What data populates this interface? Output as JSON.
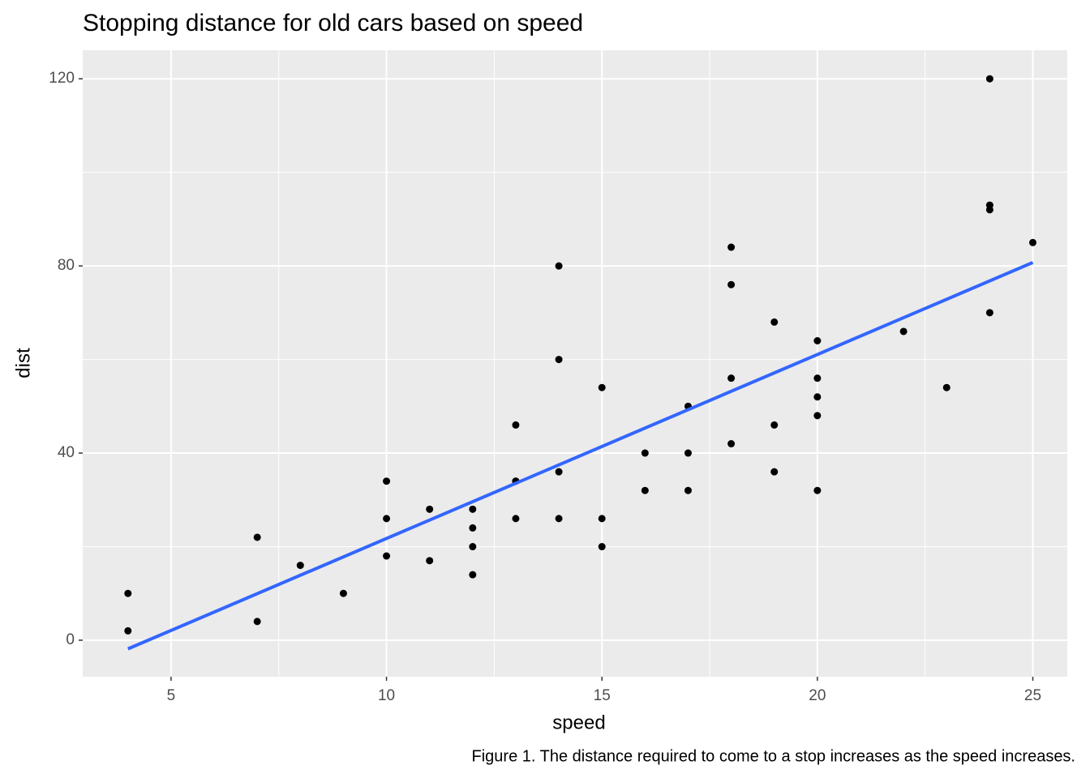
{
  "chart_data": {
    "type": "scatter",
    "title": "Stopping distance for old cars based on speed",
    "x_label": "speed",
    "y_label": "dist",
    "caption": "Figure 1. The distance required to come to a stop increases as the speed increases.",
    "series": [
      {
        "name": "cars",
        "color": "#000000",
        "x": [
          4,
          4,
          7,
          7,
          8,
          9,
          10,
          10,
          10,
          11,
          11,
          12,
          12,
          12,
          12,
          13,
          13,
          13,
          13,
          14,
          14,
          14,
          14,
          15,
          15,
          15,
          16,
          16,
          17,
          17,
          17,
          18,
          18,
          18,
          18,
          19,
          19,
          19,
          20,
          20,
          20,
          20,
          20,
          22,
          23,
          24,
          24,
          24,
          24,
          25
        ],
        "values": [
          2,
          10,
          4,
          22,
          16,
          10,
          18,
          26,
          34,
          17,
          28,
          14,
          20,
          24,
          28,
          26,
          34,
          34,
          46,
          26,
          36,
          60,
          80,
          20,
          26,
          54,
          32,
          40,
          32,
          40,
          50,
          42,
          56,
          76,
          84,
          36,
          46,
          68,
          32,
          48,
          52,
          56,
          64,
          66,
          54,
          70,
          92,
          93,
          120,
          85
        ]
      }
    ],
    "trend": {
      "color": "#3366FF",
      "x": [
        4,
        25
      ],
      "values": [
        -1.85,
        80.73
      ]
    },
    "xlim": [
      2.95,
      25.8
    ],
    "ylim": [
      -7.8,
      126.1
    ],
    "xticks": [
      5,
      10,
      15,
      20,
      25
    ],
    "yticks": [
      0,
      40,
      80,
      120
    ],
    "grid": true,
    "minor_grid": true
  }
}
